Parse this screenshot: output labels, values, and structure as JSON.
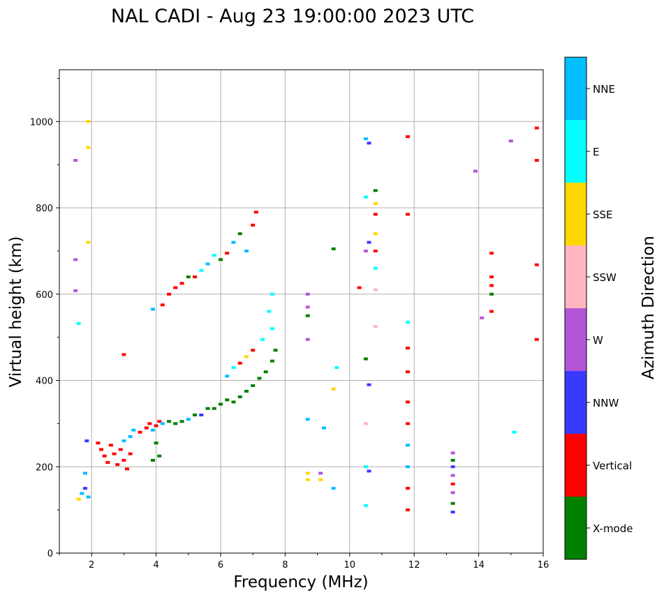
{
  "chart_data": {
    "type": "scatter",
    "title": "NAL CADI - Aug 23 19:00:00 2023 UTC",
    "xlabel": "Frequency (MHz)",
    "ylabel": "Virtual height (km)",
    "xlim": [
      1.0,
      16.0
    ],
    "ylim": [
      0,
      1120
    ],
    "xticks": [
      2,
      4,
      6,
      8,
      10,
      12,
      14,
      16
    ],
    "yticks": [
      0,
      200,
      400,
      600,
      800,
      1000
    ],
    "grid": true,
    "colorbar": {
      "label": "Azimuth Direction",
      "categories": [
        {
          "name": "X-mode",
          "color": "#008000"
        },
        {
          "name": "Vertical",
          "color": "#ff0000"
        },
        {
          "name": "NNW",
          "color": "#3a3aff"
        },
        {
          "name": "W",
          "color": "#b455d8"
        },
        {
          "name": "SSW",
          "color": "#ffb6c1"
        },
        {
          "name": "SSE",
          "color": "#ffd700"
        },
        {
          "name": "E",
          "color": "#00ffff"
        },
        {
          "name": "NNE",
          "color": "#00bfff"
        }
      ]
    },
    "points": [
      [
        1.6,
        125,
        "SSE"
      ],
      [
        1.7,
        138,
        "NNE"
      ],
      [
        1.8,
        150,
        "NNW"
      ],
      [
        1.8,
        185,
        "NNE"
      ],
      [
        1.9,
        130,
        "NNE"
      ],
      [
        1.85,
        260,
        "NNW"
      ],
      [
        1.9,
        1000,
        "SSE"
      ],
      [
        1.9,
        940,
        "SSE"
      ],
      [
        1.9,
        720,
        "SSE"
      ],
      [
        1.5,
        910,
        "W"
      ],
      [
        1.5,
        680,
        "W"
      ],
      [
        1.5,
        608,
        "W"
      ],
      [
        1.6,
        532,
        "E"
      ],
      [
        2.2,
        255,
        "Vertical"
      ],
      [
        2.3,
        240,
        "Vertical"
      ],
      [
        2.4,
        225,
        "Vertical"
      ],
      [
        2.5,
        210,
        "Vertical"
      ],
      [
        2.6,
        250,
        "Vertical"
      ],
      [
        2.7,
        230,
        "Vertical"
      ],
      [
        2.8,
        205,
        "Vertical"
      ],
      [
        2.9,
        240,
        "Vertical"
      ],
      [
        3.0,
        215,
        "Vertical"
      ],
      [
        3.0,
        260,
        "NNE"
      ],
      [
        3.1,
        195,
        "Vertical"
      ],
      [
        3.2,
        230,
        "Vertical"
      ],
      [
        3.2,
        270,
        "NNE"
      ],
      [
        3.3,
        285,
        "NNE"
      ],
      [
        3.0,
        460,
        "Vertical"
      ],
      [
        3.5,
        280,
        "Vertical"
      ],
      [
        3.7,
        290,
        "Vertical"
      ],
      [
        3.8,
        300,
        "Vertical"
      ],
      [
        3.9,
        285,
        "NNE"
      ],
      [
        4.0,
        295,
        "Vertical"
      ],
      [
        4.1,
        305,
        "Vertical"
      ],
      [
        4.0,
        255,
        "X-mode"
      ],
      [
        4.1,
        225,
        "X-mode"
      ],
      [
        3.9,
        215,
        "X-mode"
      ],
      [
        4.2,
        300,
        "NNE"
      ],
      [
        4.4,
        305,
        "X-mode"
      ],
      [
        4.6,
        300,
        "X-mode"
      ],
      [
        4.8,
        305,
        "X-mode"
      ],
      [
        5.0,
        310,
        "NNE"
      ],
      [
        5.2,
        320,
        "X-mode"
      ],
      [
        5.4,
        320,
        "NNW"
      ],
      [
        5.6,
        335,
        "X-mode"
      ],
      [
        5.8,
        335,
        "X-mode"
      ],
      [
        6.0,
        345,
        "X-mode"
      ],
      [
        6.2,
        355,
        "X-mode"
      ],
      [
        6.4,
        350,
        "X-mode"
      ],
      [
        6.6,
        362,
        "X-mode"
      ],
      [
        6.8,
        375,
        "X-mode"
      ],
      [
        7.0,
        388,
        "X-mode"
      ],
      [
        7.2,
        405,
        "X-mode"
      ],
      [
        7.4,
        420,
        "X-mode"
      ],
      [
        7.6,
        445,
        "X-mode"
      ],
      [
        7.7,
        470,
        "X-mode"
      ],
      [
        7.6,
        520,
        "E"
      ],
      [
        7.5,
        560,
        "E"
      ],
      [
        7.6,
        600,
        "E"
      ],
      [
        6.2,
        410,
        "NNE"
      ],
      [
        6.6,
        440,
        "Vertical"
      ],
      [
        6.4,
        430,
        "E"
      ],
      [
        7.0,
        470,
        "Vertical"
      ],
      [
        7.3,
        495,
        "E"
      ],
      [
        6.8,
        455,
        "SSE"
      ],
      [
        3.9,
        565,
        "NNE"
      ],
      [
        4.2,
        575,
        "Vertical"
      ],
      [
        4.4,
        600,
        "Vertical"
      ],
      [
        4.6,
        615,
        "Vertical"
      ],
      [
        4.8,
        625,
        "Vertical"
      ],
      [
        5.0,
        640,
        "X-mode"
      ],
      [
        5.2,
        640,
        "Vertical"
      ],
      [
        5.4,
        655,
        "E"
      ],
      [
        5.6,
        670,
        "NNE"
      ],
      [
        5.8,
        690,
        "E"
      ],
      [
        6.0,
        680,
        "X-mode"
      ],
      [
        6.2,
        695,
        "Vertical"
      ],
      [
        6.4,
        720,
        "NNE"
      ],
      [
        6.6,
        740,
        "X-mode"
      ],
      [
        6.8,
        700,
        "NNE"
      ],
      [
        7.0,
        760,
        "Vertical"
      ],
      [
        7.1,
        790,
        "Vertical"
      ],
      [
        8.7,
        185,
        "SSE"
      ],
      [
        8.7,
        170,
        "SSE"
      ],
      [
        8.7,
        600,
        "W"
      ],
      [
        8.7,
        570,
        "W"
      ],
      [
        8.7,
        550,
        "X-mode"
      ],
      [
        8.7,
        495,
        "W"
      ],
      [
        8.7,
        310,
        "NNE"
      ],
      [
        9.1,
        185,
        "W"
      ],
      [
        9.1,
        170,
        "SSE"
      ],
      [
        9.2,
        290,
        "NNE"
      ],
      [
        9.5,
        150,
        "NNE"
      ],
      [
        9.5,
        380,
        "SSE"
      ],
      [
        9.6,
        430,
        "E"
      ],
      [
        9.5,
        705,
        "X-mode"
      ],
      [
        10.3,
        615,
        "Vertical"
      ],
      [
        10.5,
        110,
        "E"
      ],
      [
        10.5,
        200,
        "E"
      ],
      [
        10.6,
        190,
        "NNW"
      ],
      [
        10.5,
        300,
        "SSW"
      ],
      [
        10.6,
        390,
        "NNW"
      ],
      [
        10.5,
        450,
        "X-mode"
      ],
      [
        10.5,
        700,
        "W"
      ],
      [
        10.6,
        720,
        "NNW"
      ],
      [
        10.5,
        825,
        "E"
      ],
      [
        10.5,
        960,
        "NNE"
      ],
      [
        10.6,
        950,
        "NNW"
      ],
      [
        10.8,
        525,
        "SSW"
      ],
      [
        10.8,
        610,
        "SSW"
      ],
      [
        10.8,
        660,
        "E"
      ],
      [
        10.8,
        700,
        "Vertical"
      ],
      [
        10.8,
        740,
        "SSE"
      ],
      [
        10.8,
        785,
        "Vertical"
      ],
      [
        10.8,
        810,
        "SSE"
      ],
      [
        10.8,
        840,
        "X-mode"
      ],
      [
        11.8,
        100,
        "Vertical"
      ],
      [
        11.8,
        150,
        "Vertical"
      ],
      [
        11.8,
        200,
        "NNE"
      ],
      [
        11.8,
        250,
        "NNE"
      ],
      [
        11.8,
        300,
        "Vertical"
      ],
      [
        11.8,
        350,
        "Vertical"
      ],
      [
        11.8,
        420,
        "Vertical"
      ],
      [
        11.8,
        475,
        "Vertical"
      ],
      [
        11.8,
        535,
        "E"
      ],
      [
        11.8,
        785,
        "Vertical"
      ],
      [
        11.8,
        965,
        "Vertical"
      ],
      [
        13.2,
        95,
        "NNW"
      ],
      [
        13.2,
        115,
        "X-mode"
      ],
      [
        13.2,
        140,
        "W"
      ],
      [
        13.2,
        160,
        "Vertical"
      ],
      [
        13.2,
        180,
        "W"
      ],
      [
        13.2,
        200,
        "NNW"
      ],
      [
        13.2,
        215,
        "X-mode"
      ],
      [
        13.2,
        232,
        "W"
      ],
      [
        14.4,
        560,
        "Vertical"
      ],
      [
        14.4,
        600,
        "X-mode"
      ],
      [
        14.4,
        620,
        "Vertical"
      ],
      [
        14.4,
        640,
        "Vertical"
      ],
      [
        14.4,
        695,
        "Vertical"
      ],
      [
        13.9,
        885,
        "W"
      ],
      [
        14.1,
        545,
        "W"
      ],
      [
        15.0,
        955,
        "W"
      ],
      [
        15.1,
        280,
        "E"
      ],
      [
        15.8,
        985,
        "Vertical"
      ],
      [
        15.8,
        910,
        "Vertical"
      ],
      [
        15.8,
        668,
        "Vertical"
      ],
      [
        15.8,
        495,
        "Vertical"
      ]
    ]
  }
}
